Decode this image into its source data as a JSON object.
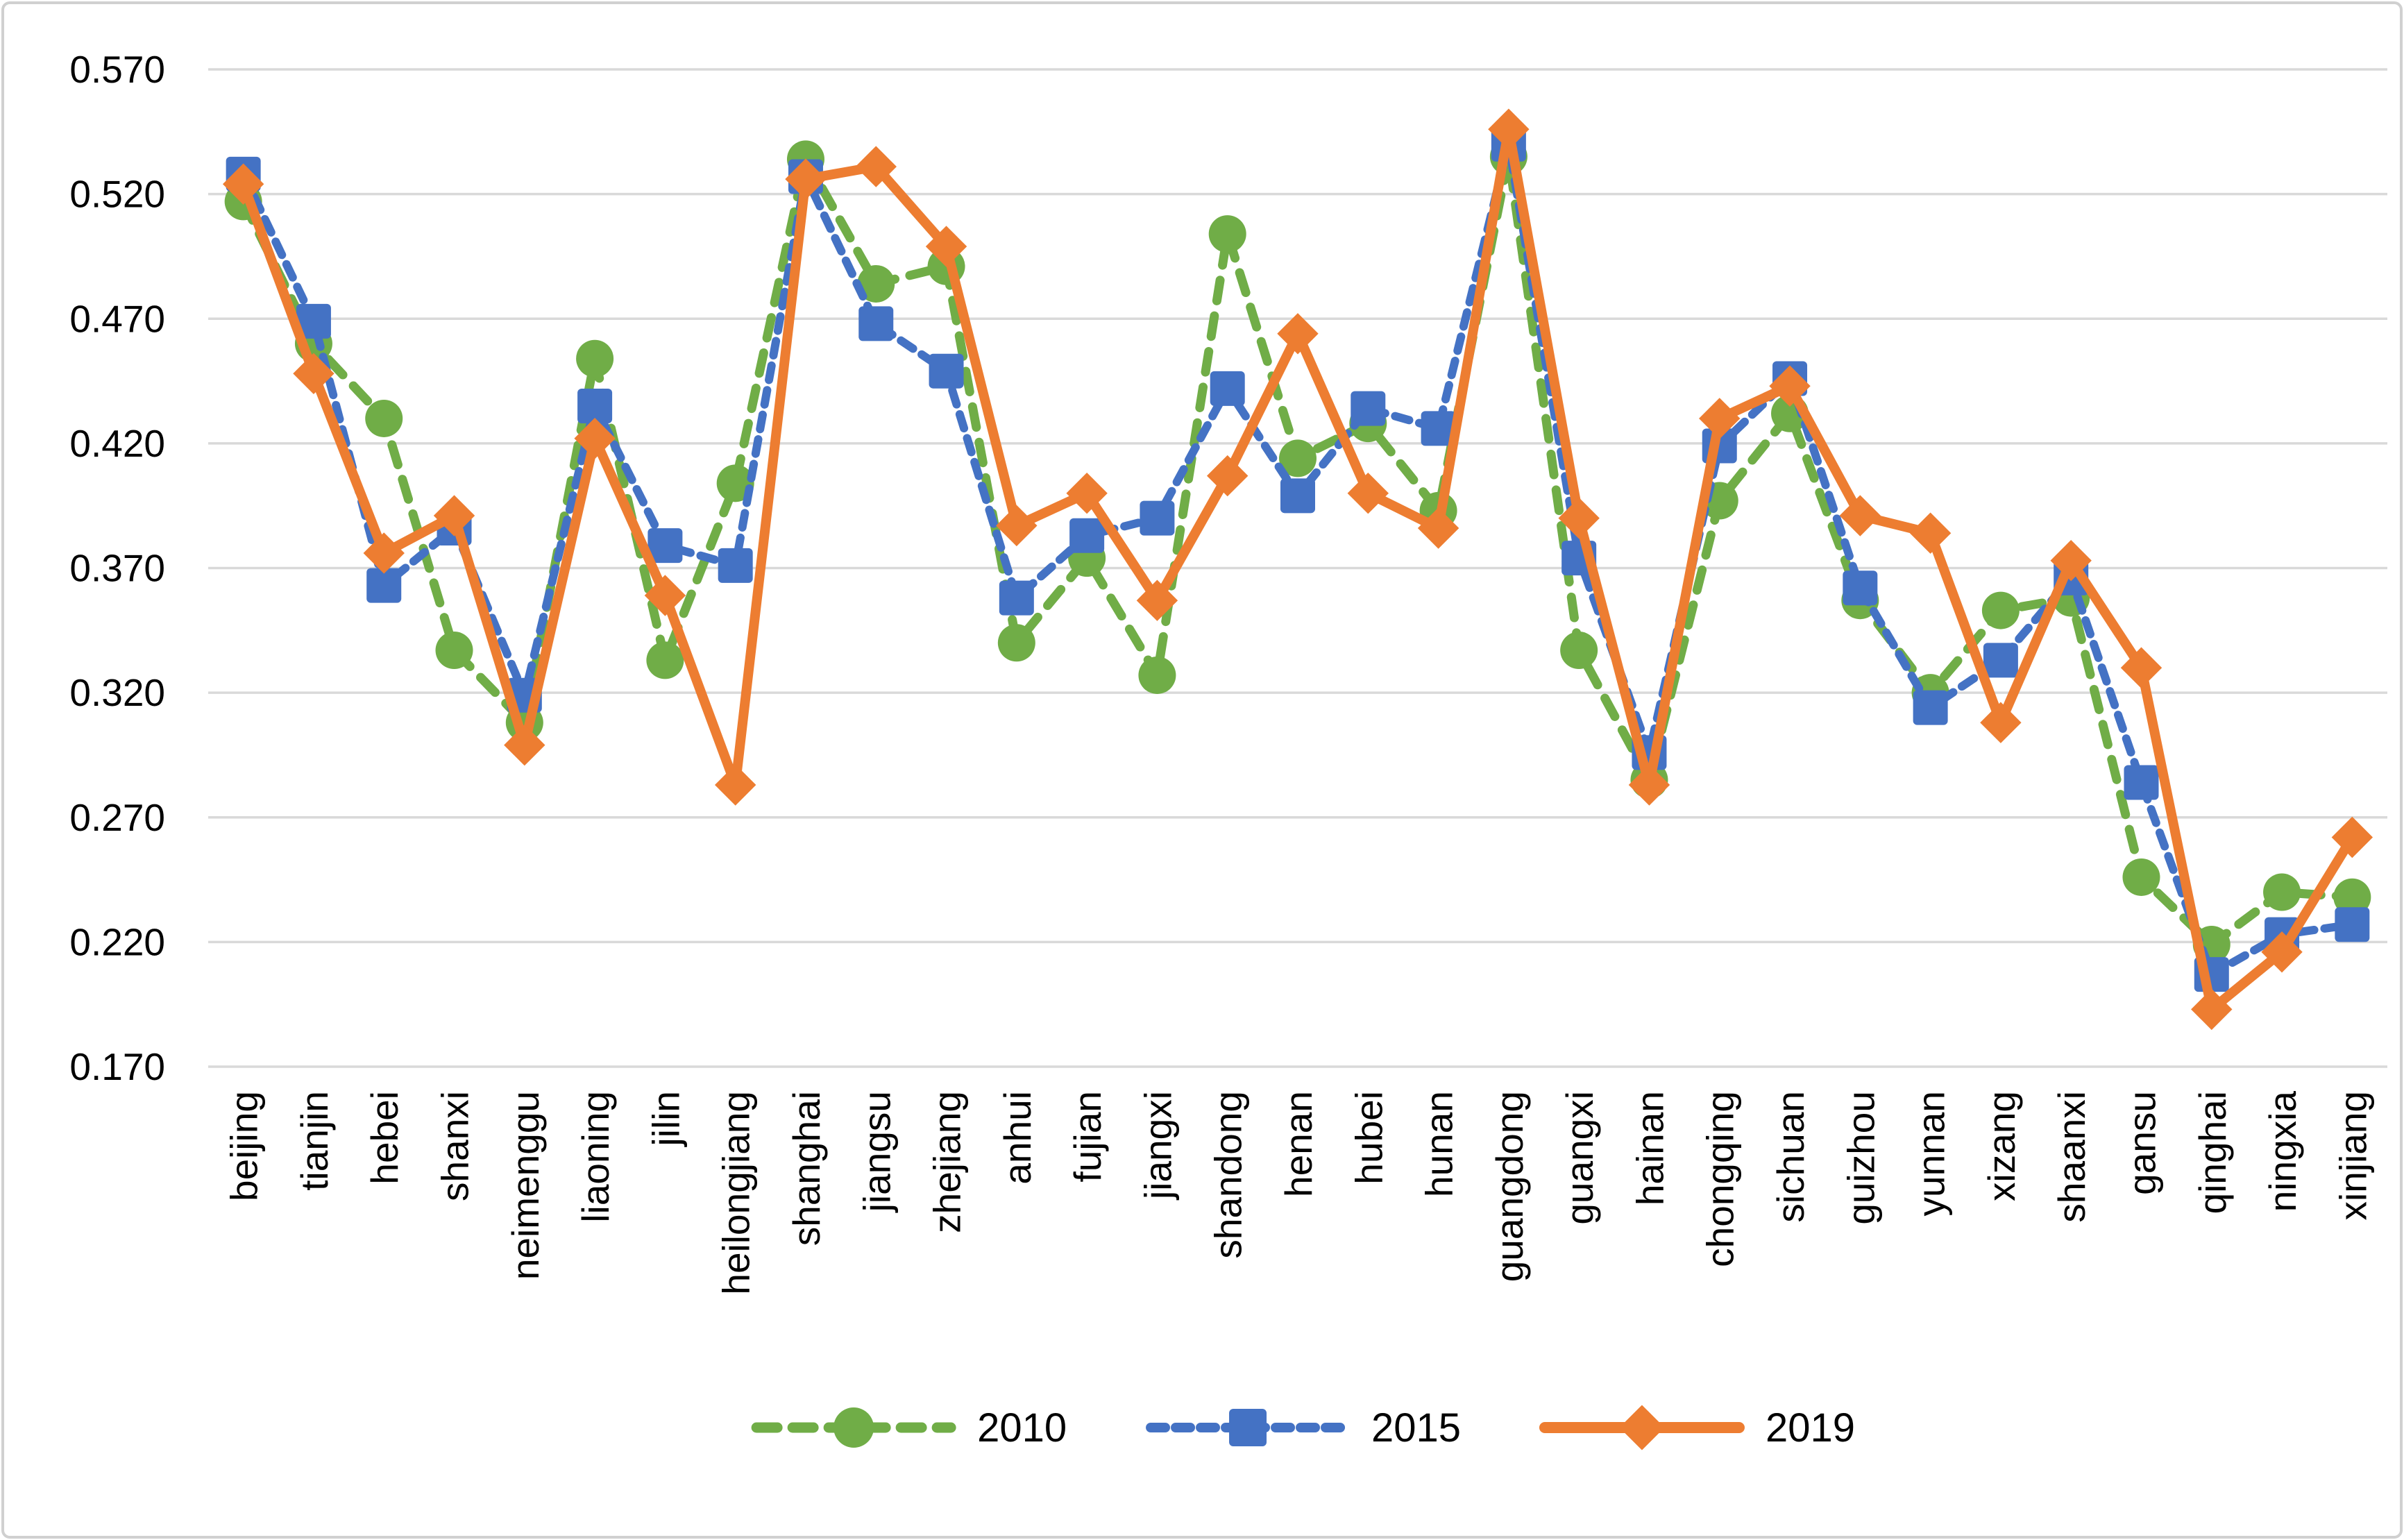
{
  "chart_data": {
    "type": "line",
    "title": "",
    "xlabel": "",
    "ylabel": "",
    "ylim": [
      0.17,
      0.57
    ],
    "y_tick_step": 0.05,
    "y_ticks": [
      "0.570",
      "0.520",
      "0.470",
      "0.420",
      "0.370",
      "0.320",
      "0.270",
      "0.220",
      "0.170"
    ],
    "grid": "horizontal",
    "legend_position": "bottom-center",
    "gridline_color": "#D9D9D9",
    "border_color": "#D0D0D0",
    "categories": [
      "beijing",
      "tianjin",
      "hebei",
      "shanxi",
      "neimenggu",
      "liaoning",
      "jilin",
      "heilongjiang",
      "shanghai",
      "jiangsu",
      "zhejiang",
      "anhui",
      "fujian",
      "jiangxi",
      "shandong",
      "henan",
      "hubei",
      "hunan",
      "guangdong",
      "guangxi",
      "hainan",
      "chongqing",
      "sichuan",
      "guizhou",
      "yunnan",
      "xizang",
      "shaanxi",
      "gansu",
      "qinghai",
      "ningxia",
      "xinjiang"
    ],
    "series": [
      {
        "name": "2010",
        "color": "#70AD47",
        "line_style": "dashed",
        "marker": "circle",
        "values": [
          0.517,
          0.46,
          0.43,
          0.337,
          0.308,
          0.454,
          0.333,
          0.404,
          0.534,
          0.484,
          0.491,
          0.34,
          0.374,
          0.327,
          0.504,
          0.414,
          0.428,
          0.393,
          0.535,
          0.337,
          0.285,
          0.397,
          0.432,
          0.357,
          0.32,
          0.353,
          0.358,
          0.246,
          0.219,
          0.24,
          0.238
        ]
      },
      {
        "name": "2015",
        "color": "#4472C4",
        "line_style": "dashed",
        "marker": "square",
        "values": [
          0.528,
          0.469,
          0.363,
          0.386,
          0.319,
          0.435,
          0.379,
          0.371,
          0.527,
          0.468,
          0.449,
          0.358,
          0.383,
          0.39,
          0.442,
          0.399,
          0.434,
          0.426,
          0.54,
          0.374,
          0.296,
          0.419,
          0.446,
          0.362,
          0.314,
          0.333,
          0.366,
          0.284,
          0.207,
          0.223,
          0.227
        ]
      },
      {
        "name": "2019",
        "color": "#ED7D31",
        "line_style": "solid",
        "marker": "diamond",
        "values": [
          0.524,
          0.448,
          0.376,
          0.391,
          0.299,
          0.422,
          0.359,
          0.283,
          0.526,
          0.531,
          0.499,
          0.387,
          0.4,
          0.357,
          0.407,
          0.464,
          0.4,
          0.386,
          0.546,
          0.39,
          0.283,
          0.43,
          0.443,
          0.391,
          0.384,
          0.308,
          0.373,
          0.33,
          0.193,
          0.216,
          0.262
        ]
      }
    ]
  }
}
